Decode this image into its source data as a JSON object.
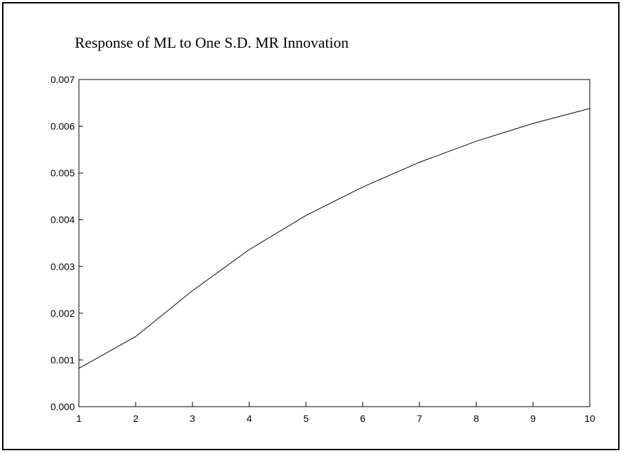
{
  "chart_data": {
    "type": "line",
    "title": "Response of ML to One S.D. MR Innovation",
    "xlabel": "",
    "ylabel": "",
    "x": [
      1,
      2,
      3,
      4,
      5,
      6,
      7,
      8,
      9,
      10
    ],
    "x_tick_labels": [
      "1",
      "2",
      "3",
      "4",
      "5",
      "6",
      "7",
      "8",
      "9",
      "10"
    ],
    "y_tick_values": [
      0.0,
      0.001,
      0.002,
      0.003,
      0.004,
      0.005,
      0.006,
      0.007
    ],
    "y_tick_labels": [
      "0.000",
      "0.001",
      "0.002",
      "0.003",
      "0.004",
      "0.005",
      "0.006",
      "0.007"
    ],
    "ylim": [
      0.0,
      0.007
    ],
    "xlim": [
      1,
      10
    ],
    "grid": false,
    "series": [
      {
        "values": [
          0.00082,
          0.0015,
          0.00248,
          0.00336,
          0.00409,
          0.0047,
          0.00523,
          0.00568,
          0.00606,
          0.00638
        ]
      }
    ],
    "colors": {
      "line": "#000000",
      "axis": "#000000",
      "background": "#ffffff"
    }
  }
}
